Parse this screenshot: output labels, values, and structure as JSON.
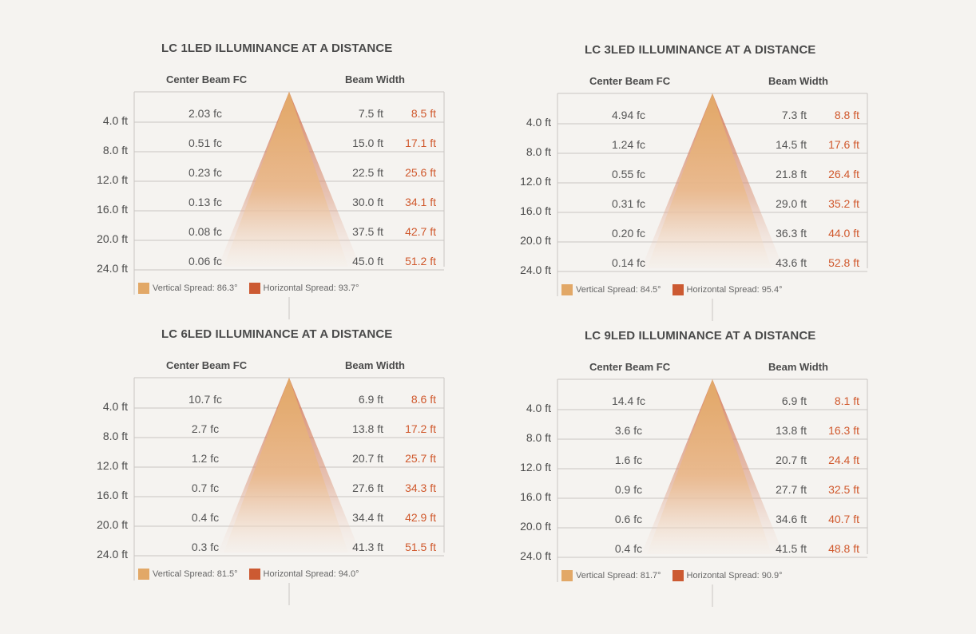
{
  "colors": {
    "vertical": "#e2a867",
    "horizontal": "#cc5a32",
    "grid": "#c9c6c2",
    "text": "#4b4b4b"
  },
  "column_headers": {
    "center": "Center Beam FC",
    "width": "Beam Width"
  },
  "chart_data": [
    {
      "type": "table",
      "title": "LC 1LED ILLUMINANCE AT A DISTANCE",
      "distances": [
        "4.0 ft",
        "8.0 ft",
        "12.0 ft",
        "16.0 ft",
        "20.0 ft",
        "24.0 ft"
      ],
      "center_beam_fc": [
        "2.03 fc",
        "0.51 fc",
        "0.23 fc",
        "0.13 fc",
        "0.08 fc",
        "0.06 fc"
      ],
      "beam_width_vertical": [
        "7.5 ft",
        "15.0 ft",
        "22.5 ft",
        "30.0 ft",
        "37.5 ft",
        "45.0 ft"
      ],
      "beam_width_horizontal": [
        "8.5 ft",
        "17.1 ft",
        "25.6 ft",
        "34.1 ft",
        "42.7 ft",
        "51.2 ft"
      ],
      "legend": [
        "Vertical Spread: 86.3°",
        "Horizontal Spread: 93.7°"
      ]
    },
    {
      "type": "table",
      "title": "LC 3LED ILLUMINANCE AT A DISTANCE",
      "distances": [
        "4.0 ft",
        "8.0 ft",
        "12.0 ft",
        "16.0 ft",
        "20.0 ft",
        "24.0 ft"
      ],
      "center_beam_fc": [
        "4.94 fc",
        "1.24 fc",
        "0.55 fc",
        "0.31 fc",
        "0.20 fc",
        "0.14 fc"
      ],
      "beam_width_vertical": [
        "7.3 ft",
        "14.5 ft",
        "21.8 ft",
        "29.0 ft",
        "36.3 ft",
        "43.6 ft"
      ],
      "beam_width_horizontal": [
        "8.8 ft",
        "17.6 ft",
        "26.4 ft",
        "35.2 ft",
        "44.0 ft",
        "52.8 ft"
      ],
      "legend": [
        "Vertical Spread: 84.5°",
        "Horizontal Spread: 95.4°"
      ]
    },
    {
      "type": "table",
      "title": "LC 6LED ILLUMINANCE AT A DISTANCE",
      "distances": [
        "4.0 ft",
        "8.0 ft",
        "12.0 ft",
        "16.0 ft",
        "20.0 ft",
        "24.0 ft"
      ],
      "center_beam_fc": [
        "10.7 fc",
        "2.7 fc",
        "1.2 fc",
        "0.7 fc",
        "0.4 fc",
        "0.3 fc"
      ],
      "beam_width_vertical": [
        "6.9 ft",
        "13.8 ft",
        "20.7 ft",
        "27.6 ft",
        "34.4 ft",
        "41.3 ft"
      ],
      "beam_width_horizontal": [
        "8.6 ft",
        "17.2 ft",
        "25.7 ft",
        "34.3 ft",
        "42.9 ft",
        "51.5 ft"
      ],
      "legend": [
        "Vertical Spread: 81.5°",
        "Horizontal Spread: 94.0°"
      ]
    },
    {
      "type": "table",
      "title": "LC 9LED ILLUMINANCE AT A DISTANCE",
      "distances": [
        "4.0 ft",
        "8.0 ft",
        "12.0 ft",
        "16.0 ft",
        "20.0 ft",
        "24.0 ft"
      ],
      "center_beam_fc": [
        "14.4 fc",
        "3.6 fc",
        "1.6 fc",
        "0.9 fc",
        "0.6 fc",
        "0.4 fc"
      ],
      "beam_width_vertical": [
        "6.9 ft",
        "13.8 ft",
        "20.7 ft",
        "27.7 ft",
        "34.6 ft",
        "41.5 ft"
      ],
      "beam_width_horizontal": [
        "8.1 ft",
        "16.3 ft",
        "24.4 ft",
        "32.5 ft",
        "40.7 ft",
        "48.8 ft"
      ],
      "legend": [
        "Vertical Spread: 81.7°",
        "Horizontal Spread: 90.9°"
      ]
    }
  ]
}
